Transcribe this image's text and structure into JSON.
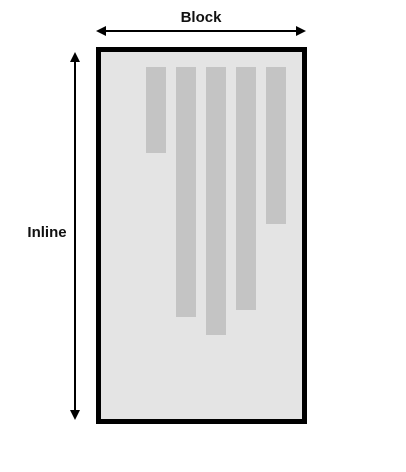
{
  "diagram": {
    "block_axis_label": "Block",
    "inline_axis_label": "Inline",
    "bars": [
      {
        "name": "bar-1",
        "relative_length": 0.24
      },
      {
        "name": "bar-2",
        "relative_length": 0.7
      },
      {
        "name": "bar-3",
        "relative_length": 0.75
      },
      {
        "name": "bar-4",
        "relative_length": 0.68
      },
      {
        "name": "bar-5",
        "relative_length": 0.44
      }
    ],
    "colors": {
      "container_fill": "#e4e4e4",
      "container_stroke": "#000000",
      "bar_fill": "#c4c4c4",
      "arrow": "#000000",
      "text": "#111111"
    }
  }
}
